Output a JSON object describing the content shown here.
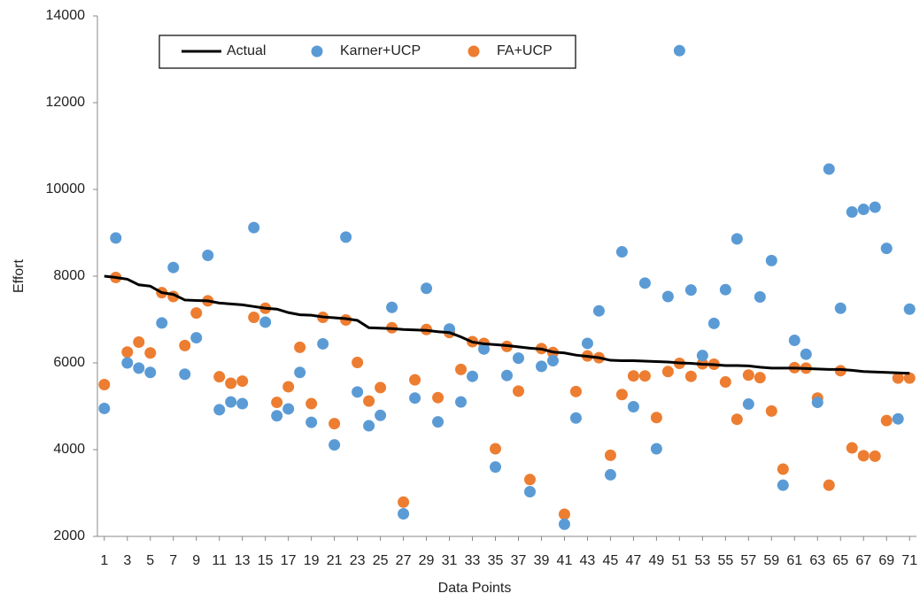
{
  "chart_data": {
    "type": "scatter",
    "xlabel": "Data Points",
    "ylabel": "Effort",
    "x": [
      1,
      2,
      3,
      4,
      5,
      6,
      7,
      8,
      9,
      10,
      11,
      12,
      13,
      14,
      15,
      16,
      17,
      18,
      19,
      20,
      21,
      22,
      23,
      24,
      25,
      26,
      27,
      28,
      29,
      30,
      31,
      32,
      33,
      34,
      35,
      36,
      37,
      38,
      39,
      40,
      41,
      42,
      43,
      44,
      45,
      46,
      47,
      48,
      49,
      50,
      51,
      52,
      53,
      54,
      55,
      56,
      57,
      58,
      59,
      60,
      61,
      62,
      63,
      64,
      65,
      66,
      67,
      68,
      69,
      70,
      71
    ],
    "xlim": [
      0.4,
      71.6
    ],
    "xticks": [
      1,
      3,
      5,
      7,
      9,
      11,
      13,
      15,
      17,
      19,
      21,
      23,
      25,
      27,
      29,
      31,
      33,
      35,
      37,
      39,
      41,
      43,
      45,
      47,
      49,
      51,
      53,
      55,
      57,
      59,
      61,
      63,
      65,
      67,
      69,
      71
    ],
    "ylim": [
      2000,
      14000
    ],
    "yticks": [
      2000,
      4000,
      6000,
      8000,
      10000,
      12000,
      14000
    ],
    "legend": "top",
    "series": [
      {
        "name": "Actual",
        "color": "#000000",
        "kind": "line",
        "values": [
          8000,
          7970,
          7930,
          7800,
          7770,
          7620,
          7580,
          7450,
          7440,
          7430,
          7380,
          7360,
          7340,
          7300,
          7260,
          7240,
          7160,
          7110,
          7100,
          7060,
          7040,
          7020,
          6980,
          6810,
          6800,
          6790,
          6770,
          6760,
          6750,
          6720,
          6700,
          6600,
          6480,
          6440,
          6420,
          6400,
          6370,
          6340,
          6320,
          6250,
          6230,
          6180,
          6150,
          6120,
          6060,
          6050,
          6050,
          6040,
          6030,
          6020,
          6000,
          5990,
          5970,
          5960,
          5940,
          5940,
          5930,
          5900,
          5880,
          5880,
          5880,
          5870,
          5860,
          5850,
          5850,
          5830,
          5800,
          5790,
          5780,
          5770,
          5760
        ]
      },
      {
        "name": "Karner+UCP",
        "color": "#5b9bd5",
        "kind": "marker",
        "values": [
          4950,
          8880,
          6000,
          5880,
          5780,
          6920,
          8200,
          5740,
          6580,
          8480,
          4920,
          5100,
          5060,
          9120,
          6940,
          4780,
          4940,
          5780,
          4630,
          6440,
          4110,
          8900,
          5330,
          4550,
          4790,
          7280,
          2520,
          5190,
          7720,
          4640,
          6780,
          5100,
          5690,
          6320,
          3600,
          5710,
          6110,
          3030,
          5920,
          6050,
          2280,
          4730,
          6450,
          7200,
          3420,
          8560,
          4990,
          7840,
          4020,
          7530,
          13200,
          7680,
          6170,
          6910,
          7690,
          8860,
          5050,
          7520,
          8360,
          3180,
          6520,
          6200,
          5090,
          10470,
          7260,
          9480,
          9540,
          9590,
          8640,
          4710,
          7240
        ]
      },
      {
        "name": "FA+UCP",
        "color": "#ed7d31",
        "kind": "marker",
        "values": [
          5500,
          7970,
          6250,
          6480,
          6230,
          7620,
          7530,
          6400,
          7150,
          7430,
          5680,
          5530,
          5580,
          7050,
          7260,
          5090,
          5450,
          6360,
          5060,
          7050,
          4600,
          6990,
          6010,
          5120,
          5430,
          6810,
          2790,
          5610,
          6770,
          5200,
          6700,
          5850,
          6490,
          6450,
          4020,
          6380,
          5350,
          3310,
          6330,
          6240,
          2510,
          5340,
          6160,
          6120,
          3870,
          5270,
          5700,
          5700,
          4740,
          5800,
          5990,
          5690,
          5980,
          5970,
          5560,
          4700,
          5720,
          5660,
          4890,
          3550,
          5890,
          5880,
          5190,
          3180,
          5820,
          4040,
          3860,
          3850,
          4670,
          5650,
          5650
        ]
      }
    ]
  }
}
